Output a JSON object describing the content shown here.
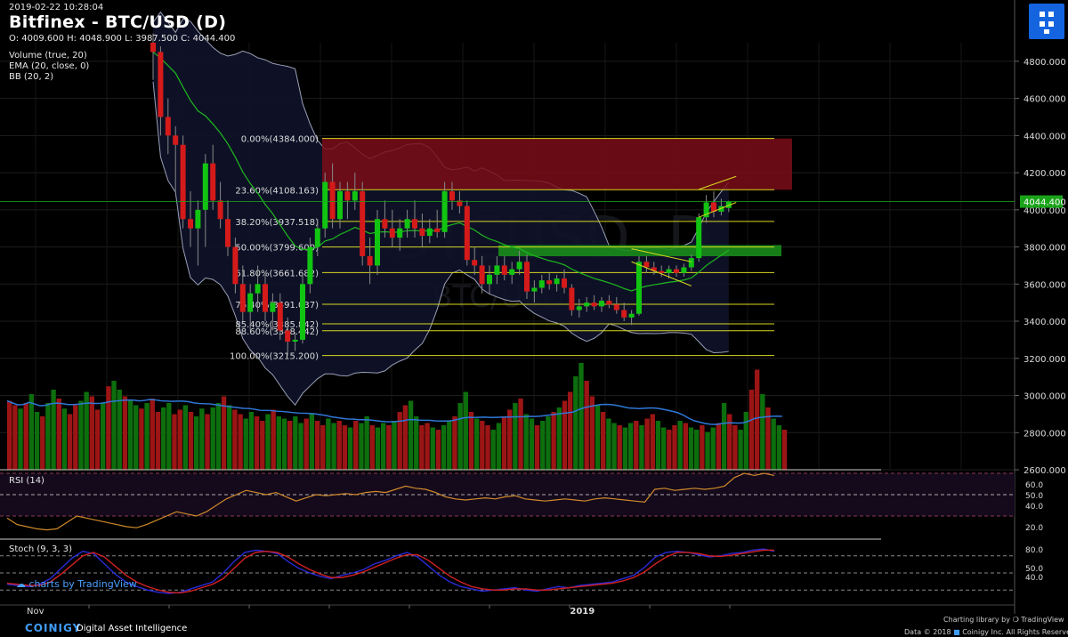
{
  "header": {
    "timestamp": "2019-02-22 10:28:04",
    "title": "Bitfinex - BTC/USD (D)",
    "ohlc": "O: 4009.600 H: 4048.900 L: 3987.500 C: 4044.400",
    "indicators": [
      "Volume (true, 20)",
      "EMA (20, close, 0)",
      "BB (20, 2)"
    ]
  },
  "watermark": {
    "big": "BTCUSD, D",
    "small": "BTC/USD"
  },
  "colors": {
    "up": "#12c412",
    "down": "#d51a1a",
    "fib": "#d8d820",
    "ema": "#1fb81f",
    "bb": "#9aa0b6",
    "vol_ma": "#2f78d8",
    "rsi": "#d08a2a",
    "stoch_k": "#2a2ad6",
    "stoch_d": "#d02020",
    "last": "#1aa31a"
  },
  "chart_data": [
    {
      "type": "candlestick",
      "title": "Bitfinex - BTC/USD (D)",
      "ylim": [
        2600,
        4900
      ],
      "y_ticks": [
        2600,
        2800,
        3000,
        3200,
        3400,
        3600,
        3800,
        4000,
        4200,
        4400,
        4600,
        4800
      ],
      "y_tick_labels": [
        "2600.000",
        "2800.000",
        "3000.000",
        "3200.000",
        "3400.000",
        "3600.000",
        "3800.000",
        "4000.000",
        "4200.000",
        "4400.000",
        "4600.000",
        "4800.000"
      ],
      "x_labels": [
        {
          "i": 2,
          "label": "Nov"
        },
        {
          "i": 51,
          "label": "2019"
        }
      ],
      "last_price": 4044.4,
      "last_price_label": "4044.400",
      "candles": [
        {
          "o": 4900,
          "h": 4950,
          "l": 4700,
          "c": 4850
        },
        {
          "o": 4850,
          "h": 4880,
          "l": 4400,
          "c": 4500
        },
        {
          "o": 4500,
          "h": 4600,
          "l": 4300,
          "c": 4400
        },
        {
          "o": 4400,
          "h": 4450,
          "l": 4100,
          "c": 4350
        },
        {
          "o": 4350,
          "h": 4400,
          "l": 3900,
          "c": 3950
        },
        {
          "o": 3950,
          "h": 4100,
          "l": 3800,
          "c": 3900
        },
        {
          "o": 3900,
          "h": 4050,
          "l": 3700,
          "c": 4000
        },
        {
          "o": 4000,
          "h": 4300,
          "l": 3800,
          "c": 4250
        },
        {
          "o": 4250,
          "h": 4350,
          "l": 4000,
          "c": 4050
        },
        {
          "o": 4050,
          "h": 4150,
          "l": 3900,
          "c": 3950
        },
        {
          "o": 3950,
          "h": 4050,
          "l": 3750,
          "c": 3800
        },
        {
          "o": 3800,
          "h": 3850,
          "l": 3550,
          "c": 3600
        },
        {
          "o": 3600,
          "h": 3700,
          "l": 3400,
          "c": 3450
        },
        {
          "o": 3450,
          "h": 3600,
          "l": 3350,
          "c": 3550
        },
        {
          "o": 3550,
          "h": 3700,
          "l": 3450,
          "c": 3600
        },
        {
          "o": 3600,
          "h": 3650,
          "l": 3400,
          "c": 3450
        },
        {
          "o": 3450,
          "h": 3550,
          "l": 3350,
          "c": 3500
        },
        {
          "o": 3500,
          "h": 3550,
          "l": 3300,
          "c": 3350
        },
        {
          "o": 3350,
          "h": 3420,
          "l": 3215,
          "c": 3290
        },
        {
          "o": 3290,
          "h": 3340,
          "l": 3240,
          "c": 3300
        },
        {
          "o": 3300,
          "h": 3650,
          "l": 3280,
          "c": 3600
        },
        {
          "o": 3600,
          "h": 3850,
          "l": 3550,
          "c": 3800
        },
        {
          "o": 3800,
          "h": 3950,
          "l": 3750,
          "c": 3900
        },
        {
          "o": 3900,
          "h": 4200,
          "l": 3850,
          "c": 4150
        },
        {
          "o": 4150,
          "h": 4250,
          "l": 3900,
          "c": 3950
        },
        {
          "o": 3950,
          "h": 4150,
          "l": 3900,
          "c": 4100
        },
        {
          "o": 4100,
          "h": 4150,
          "l": 3950,
          "c": 4050
        },
        {
          "o": 4050,
          "h": 4200,
          "l": 4000,
          "c": 4100
        },
        {
          "o": 4100,
          "h": 4150,
          "l": 3700,
          "c": 3750
        },
        {
          "o": 3750,
          "h": 3850,
          "l": 3600,
          "c": 3700
        },
        {
          "o": 3700,
          "h": 4000,
          "l": 3650,
          "c": 3950
        },
        {
          "o": 3950,
          "h": 4050,
          "l": 3850,
          "c": 3900
        },
        {
          "o": 3900,
          "h": 4000,
          "l": 3800,
          "c": 3850
        },
        {
          "o": 3850,
          "h": 3950,
          "l": 3780,
          "c": 3900
        },
        {
          "o": 3900,
          "h": 4000,
          "l": 3850,
          "c": 3950
        },
        {
          "o": 3950,
          "h": 4050,
          "l": 3850,
          "c": 3900
        },
        {
          "o": 3900,
          "h": 3980,
          "l": 3800,
          "c": 3860
        },
        {
          "o": 3860,
          "h": 3950,
          "l": 3820,
          "c": 3900
        },
        {
          "o": 3900,
          "h": 4000,
          "l": 3850,
          "c": 3880
        },
        {
          "o": 3880,
          "h": 4150,
          "l": 3850,
          "c": 4100
        },
        {
          "o": 4100,
          "h": 4150,
          "l": 4000,
          "c": 4050
        },
        {
          "o": 4050,
          "h": 4100,
          "l": 3980,
          "c": 4020
        },
        {
          "o": 4020,
          "h": 4050,
          "l": 3700,
          "c": 3730
        },
        {
          "o": 3730,
          "h": 3800,
          "l": 3650,
          "c": 3700
        },
        {
          "o": 3700,
          "h": 3750,
          "l": 3550,
          "c": 3600
        },
        {
          "o": 3600,
          "h": 3700,
          "l": 3550,
          "c": 3650
        },
        {
          "o": 3650,
          "h": 3750,
          "l": 3600,
          "c": 3700
        },
        {
          "o": 3700,
          "h": 3750,
          "l": 3620,
          "c": 3650
        },
        {
          "o": 3650,
          "h": 3720,
          "l": 3600,
          "c": 3680
        },
        {
          "o": 3680,
          "h": 3780,
          "l": 3650,
          "c": 3720
        },
        {
          "o": 3720,
          "h": 3760,
          "l": 3520,
          "c": 3560
        },
        {
          "o": 3560,
          "h": 3620,
          "l": 3500,
          "c": 3580
        },
        {
          "o": 3580,
          "h": 3650,
          "l": 3550,
          "c": 3620
        },
        {
          "o": 3620,
          "h": 3660,
          "l": 3570,
          "c": 3600
        },
        {
          "o": 3600,
          "h": 3650,
          "l": 3560,
          "c": 3630
        },
        {
          "o": 3630,
          "h": 3680,
          "l": 3550,
          "c": 3580
        },
        {
          "o": 3580,
          "h": 3600,
          "l": 3430,
          "c": 3460
        },
        {
          "o": 3460,
          "h": 3520,
          "l": 3420,
          "c": 3480
        },
        {
          "o": 3480,
          "h": 3530,
          "l": 3450,
          "c": 3500
        },
        {
          "o": 3500,
          "h": 3540,
          "l": 3460,
          "c": 3480
        },
        {
          "o": 3480,
          "h": 3530,
          "l": 3450,
          "c": 3510
        },
        {
          "o": 3510,
          "h": 3540,
          "l": 3470,
          "c": 3490
        },
        {
          "o": 3490,
          "h": 3530,
          "l": 3440,
          "c": 3460
        },
        {
          "o": 3460,
          "h": 3500,
          "l": 3400,
          "c": 3420
        },
        {
          "o": 3420,
          "h": 3460,
          "l": 3380,
          "c": 3440
        },
        {
          "o": 3440,
          "h": 3750,
          "l": 3430,
          "c": 3720
        },
        {
          "o": 3720,
          "h": 3750,
          "l": 3660,
          "c": 3690
        },
        {
          "o": 3690,
          "h": 3720,
          "l": 3650,
          "c": 3670
        },
        {
          "o": 3670,
          "h": 3700,
          "l": 3640,
          "c": 3660
        },
        {
          "o": 3660,
          "h": 3700,
          "l": 3630,
          "c": 3680
        },
        {
          "o": 3680,
          "h": 3700,
          "l": 3640,
          "c": 3660
        },
        {
          "o": 3660,
          "h": 3710,
          "l": 3640,
          "c": 3690
        },
        {
          "o": 3690,
          "h": 3760,
          "l": 3670,
          "c": 3740
        },
        {
          "o": 3740,
          "h": 3980,
          "l": 3720,
          "c": 3960
        },
        {
          "o": 3960,
          "h": 4080,
          "l": 3930,
          "c": 4040
        },
        {
          "o": 4040,
          "h": 4100,
          "l": 3960,
          "c": 3990
        },
        {
          "o": 3990,
          "h": 4060,
          "l": 3970,
          "c": 4020
        },
        {
          "o": 4009.6,
          "h": 4048.9,
          "l": 3987.5,
          "c": 4044.4
        }
      ],
      "fib_levels": [
        {
          "pct": "0.00%",
          "price": 4384.0
        },
        {
          "pct": "23.60%",
          "price": 4108.163
        },
        {
          "pct": "38.20%",
          "price": 3937.518
        },
        {
          "pct": "50.00%",
          "price": 3799.6
        },
        {
          "pct": "61.80%",
          "price": 3661.682
        },
        {
          "pct": "76.40%",
          "price": 3491.037
        },
        {
          "pct": "85.40%",
          "price": 3385.842
        },
        {
          "pct": "88.60%",
          "price": 3348.442
        },
        {
          "pct": "100.00%",
          "price": 3215.2
        }
      ],
      "zones": [
        {
          "type": "resistance",
          "from": 4108,
          "to": 4384,
          "color": "#7a0d18"
        },
        {
          "type": "support",
          "from": 3750,
          "to": 3810,
          "color": "#1a8c1a"
        }
      ]
    },
    {
      "type": "bar",
      "title": "Volume (true, 20)",
      "values": [
        62,
        58,
        55,
        60,
        68,
        52,
        48,
        60,
        72,
        64,
        55,
        50,
        58,
        62,
        70,
        66,
        54,
        60,
        75,
        80,
        72,
        66,
        62,
        58,
        55,
        60,
        64,
        52,
        56,
        60,
        50,
        54,
        58,
        52,
        48,
        55,
        50,
        56,
        60,
        66,
        58,
        54,
        50,
        46,
        52,
        48,
        44,
        50,
        54,
        48,
        46,
        44,
        48,
        42,
        46,
        50,
        44,
        40,
        46,
        42,
        44,
        40,
        38,
        44,
        42,
        48,
        40,
        38,
        42,
        40,
        44,
        52,
        58,
        62,
        48,
        40,
        42,
        38,
        36,
        40,
        44,
        48,
        60,
        70,
        52,
        46,
        44,
        40,
        36,
        42,
        48,
        54,
        60,
        64,
        50,
        46,
        40,
        44,
        48,
        52,
        56,
        62,
        70,
        84,
        96,
        80,
        66,
        58,
        52,
        46,
        42,
        40,
        38,
        42,
        44,
        40,
        46,
        50,
        44,
        38,
        36,
        40,
        44,
        42,
        38,
        36,
        40,
        34,
        38,
        42,
        60,
        50,
        40,
        36,
        52,
        72,
        90,
        68,
        56,
        46,
        40,
        36
      ]
    },
    {
      "type": "line",
      "title": "RSI (14)",
      "ylim": [
        0,
        100
      ],
      "y_tick_labels": [
        "60.0",
        "50.0",
        "40.0",
        "20.0"
      ],
      "values": [
        28,
        22,
        20,
        18,
        17,
        18,
        24,
        30,
        28,
        26,
        24,
        22,
        20,
        19,
        22,
        26,
        30,
        34,
        32,
        30,
        34,
        40,
        46,
        50,
        54,
        52,
        50,
        52,
        48,
        44,
        47,
        50,
        49,
        50,
        51,
        50,
        52,
        53,
        52,
        55,
        58,
        56,
        55,
        52,
        48,
        46,
        45,
        46,
        47,
        46,
        48,
        49,
        46,
        45,
        44,
        45,
        46,
        45,
        44,
        46,
        47,
        46,
        45,
        44,
        43,
        55,
        56,
        54,
        55,
        56,
        55,
        56,
        58,
        66,
        70,
        68,
        70,
        68
      ]
    },
    {
      "type": "line",
      "title": "Stoch (9, 3, 3)",
      "ylim": [
        0,
        100
      ],
      "y_tick_labels": [
        "80.0",
        "50.0",
        "40.0"
      ],
      "k": [
        30,
        28,
        26,
        30,
        40,
        58,
        76,
        88,
        84,
        66,
        48,
        34,
        26,
        20,
        16,
        14,
        16,
        22,
        28,
        34,
        50,
        70,
        86,
        90,
        88,
        84,
        70,
        58,
        50,
        44,
        40,
        46,
        50,
        56,
        66,
        72,
        80,
        86,
        78,
        62,
        46,
        34,
        26,
        22,
        18,
        20,
        22,
        24,
        20,
        18,
        22,
        26,
        24,
        28,
        30,
        32,
        34,
        40,
        46,
        60,
        78,
        86,
        88,
        86,
        82,
        78,
        80,
        84,
        86,
        90,
        92,
        88
      ],
      "d": [
        32,
        30,
        28,
        28,
        34,
        48,
        64,
        80,
        86,
        78,
        62,
        46,
        34,
        26,
        20,
        16,
        15,
        18,
        24,
        30,
        40,
        58,
        76,
        86,
        88,
        86,
        78,
        66,
        56,
        48,
        42,
        42,
        46,
        52,
        60,
        68,
        76,
        82,
        82,
        72,
        58,
        44,
        34,
        26,
        22,
        20,
        20,
        22,
        22,
        20,
        20,
        22,
        24,
        26,
        28,
        30,
        32,
        36,
        42,
        52,
        66,
        78,
        86,
        86,
        84,
        80,
        79,
        81,
        84,
        87,
        90,
        90
      ]
    }
  ],
  "panels": {
    "rsi_label": "RSI (14)",
    "stoch_label": "Stoch (9, 3, 3)"
  },
  "footer": {
    "tradingview": "charts by TradingView",
    "brand": "COINIGY",
    "tagline": "Digital Asset Intelligence",
    "charting": "Charting library by",
    "tv_name": "TradingView",
    "data": "Data © 2018",
    "rights": "Coinigy Inc. All Rights Reserved."
  }
}
